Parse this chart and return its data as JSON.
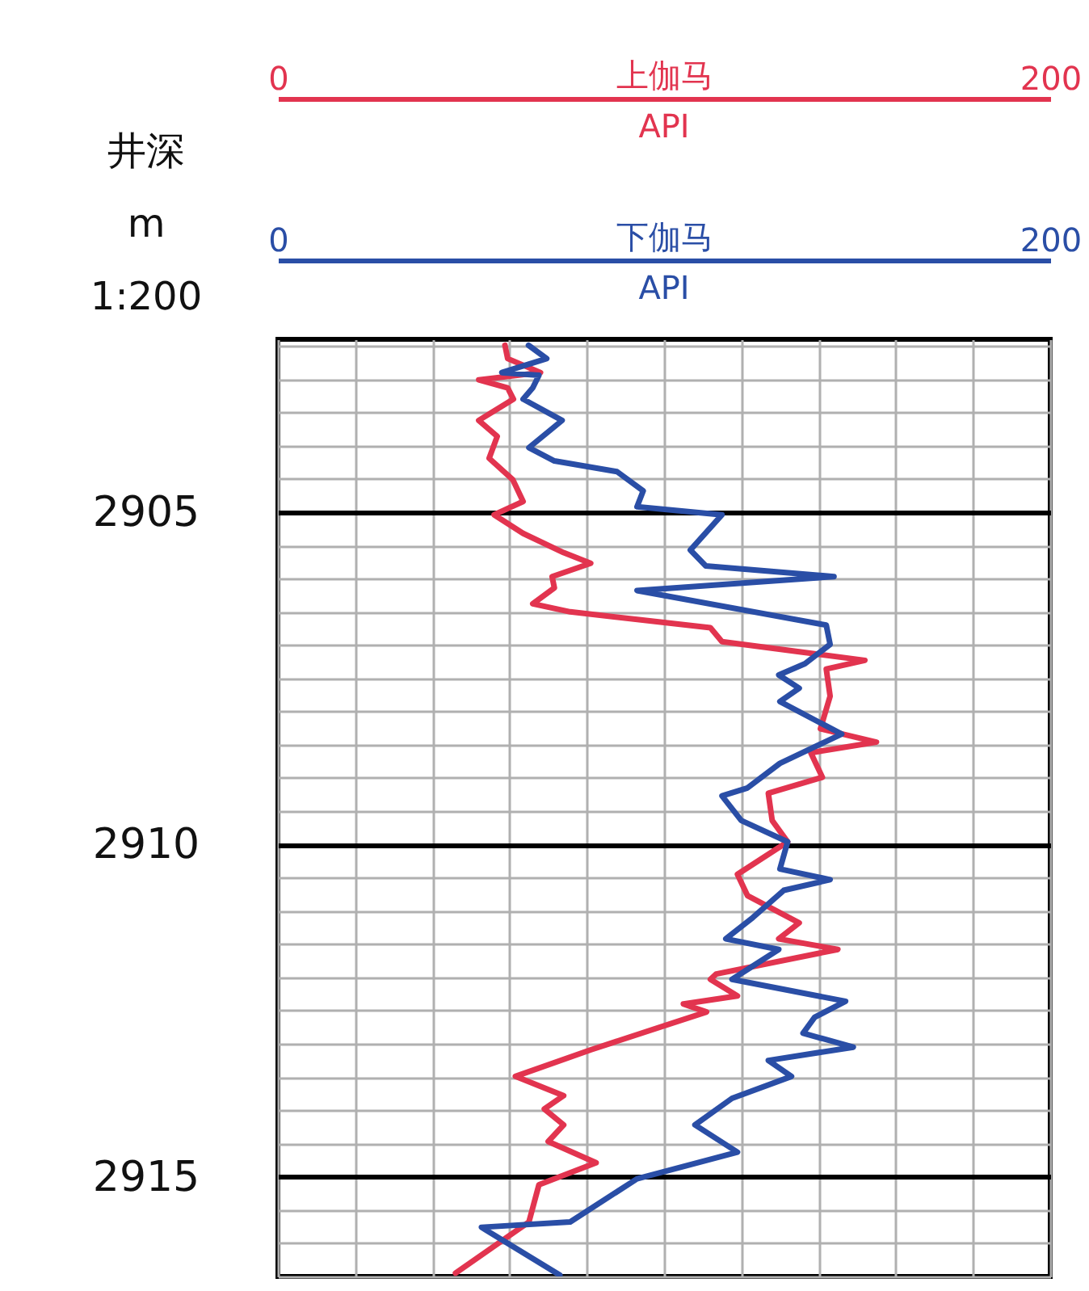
{
  "chart_data": {
    "type": "line",
    "ylabel": "井深\nm\n1:200",
    "ylim": [
      2916.5,
      2902.4
    ],
    "yticks": [
      {
        "value": 2902.5,
        "label": null
      },
      {
        "value": 2903,
        "label": null
      },
      {
        "value": 2903.5,
        "label": null
      },
      {
        "value": 2904,
        "label": null
      },
      {
        "value": 2904.5,
        "label": null
      },
      2905,
      {
        "value": 2905.5,
        "label": null
      },
      {
        "value": 2906,
        "label": null
      },
      {
        "value": 2906.5,
        "label": null
      },
      {
        "value": 2907,
        "label": null
      },
      {
        "value": 2907.5,
        "label": null
      },
      {
        "value": 2908,
        "label": null
      },
      {
        "value": 2908.5,
        "label": null
      },
      {
        "value": 2909,
        "label": null
      },
      {
        "value": 2909.5,
        "label": null
      },
      2910,
      {
        "value": 2910.5,
        "label": null
      },
      {
        "value": 2911,
        "label": null
      },
      {
        "value": 2911.5,
        "label": null
      },
      {
        "value": 2912,
        "label": null
      },
      {
        "value": 2912.5,
        "label": null
      },
      {
        "value": 2913,
        "label": null
      },
      {
        "value": 2913.5,
        "label": null
      },
      {
        "value": 2914,
        "label": null
      },
      {
        "value": 2914.5,
        "label": null
      },
      2915,
      {
        "value": 2915.5,
        "label": null
      },
      {
        "value": 2916,
        "label": null
      },
      {
        "value": 2916.5,
        "label": null
      }
    ],
    "x2lim": [
      0,
      200
    ],
    "x2ticks": [
      0,
      {
        "value": 20,
        "label": null
      },
      {
        "value": 40,
        "label": null
      },
      {
        "value": 60,
        "label": null
      },
      {
        "value": 80,
        "label": null
      },
      {
        "value": 100,
        "label": null
      },
      {
        "value": 120,
        "label": null
      },
      {
        "value": 140,
        "label": null
      },
      {
        "value": 160,
        "label": null
      },
      {
        "value": 180,
        "label": null
      },
      200
    ],
    "x2label": "API",
    "xlim": [
      0,
      200
    ],
    "xticks": [
      0,
      200
    ],
    "xlabel": "API",
    "grid": true,
    "series": [
      {
        "name": "上伽马",
        "color": "#e2344f",
        "axis": "x2",
        "x": [
          58.8,
          59.5,
          68,
          52,
          59.5,
          61,
          52,
          56.8,
          54.7,
          60.8,
          63.5,
          56,
          63.5,
          74,
          81,
          71,
          71.6,
          66,
          75.7,
          112,
          115,
          135,
          152,
          142,
          143,
          140.5,
          155,
          138,
          141,
          127,
          128,
          132,
          119,
          121.6,
          135,
          129.7,
          145,
          113.5,
          112,
          119,
          105,
          111,
          81,
          61.5,
          74,
          69,
          74,
          70,
          82.4,
          67.6,
          65,
          46
        ],
        "values": [
          2902.49,
          2902.69,
          2902.9,
          2903.01,
          2903.13,
          2903.3,
          2903.62,
          2903.86,
          2904.19,
          2904.51,
          2904.84,
          2905.04,
          2905.32,
          2905.61,
          2905.77,
          2905.97,
          2906.14,
          2906.38,
          2906.5,
          2906.74,
          2906.95,
          2907.1,
          2907.23,
          2907.36,
          2907.77,
          2908.26,
          2908.46,
          2908.62,
          2908.99,
          2909.23,
          2909.64,
          2909.96,
          2910.45,
          2910.77,
          2911.18,
          2911.42,
          2911.58,
          2911.95,
          2912.03,
          2912.28,
          2912.4,
          2912.52,
          2913.09,
          2913.49,
          2913.78,
          2913.98,
          2914.22,
          2914.47,
          2914.79,
          2915.12,
          2915.68,
          2916.45
        ]
      },
      {
        "name": "下伽马",
        "color": "#2a4ea6",
        "x": [
          64.9,
          69.6,
          58,
          67.6,
          66,
          63.5,
          73.6,
          65,
          71.6,
          87.8,
          94.6,
          93,
          115,
          106.8,
          110.8,
          144,
          93,
          142,
          143,
          136.5,
          129.7,
          135,
          130,
          146,
          130,
          121.6,
          115,
          120,
          132,
          130,
          143,
          131,
          123,
          116,
          129.7,
          117.6,
          147,
          139,
          136,
          149,
          127,
          133,
          117.6,
          108,
          119,
          93,
          75.7,
          52.7,
          73
        ],
        "values": [
          2902.49,
          2902.69,
          2902.9,
          2902.94,
          2903.13,
          2903.3,
          2903.62,
          2904.03,
          2904.23,
          2904.39,
          2904.68,
          2904.92,
          2905.04,
          2905.57,
          2905.81,
          2905.97,
          2906.18,
          2906.7,
          2906.99,
          2907.28,
          2907.45,
          2907.65,
          2907.85,
          2908.34,
          2908.78,
          2909.15,
          2909.27,
          2909.64,
          2909.96,
          2910.37,
          2910.53,
          2910.69,
          2911.1,
          2911.42,
          2911.58,
          2912.03,
          2912.36,
          2912.6,
          2912.84,
          2913.05,
          2913.25,
          2913.49,
          2913.82,
          2914.22,
          2914.63,
          2915.03,
          2915.68,
          2915.76,
          2916.48
        ]
      }
    ]
  }
}
